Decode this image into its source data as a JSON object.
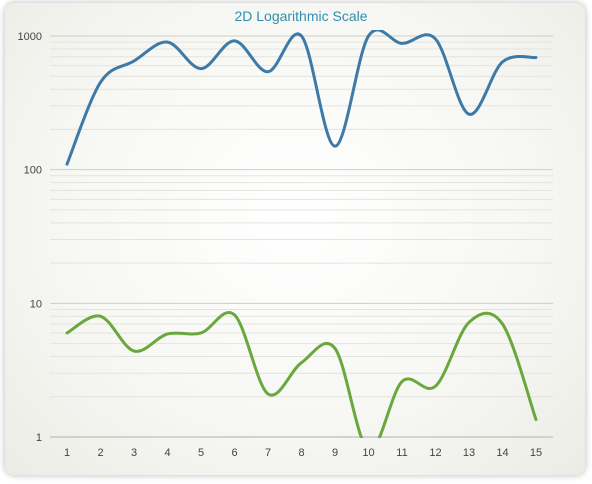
{
  "chart_data": {
    "type": "line",
    "title": "2D Logarithmic Scale",
    "xlabel": "",
    "ylabel": "",
    "y_scale": "log",
    "ylim": [
      1,
      1000
    ],
    "xlim": [
      1,
      15
    ],
    "x": [
      1,
      2,
      3,
      4,
      5,
      6,
      7,
      8,
      9,
      10,
      11,
      12,
      13,
      14,
      15
    ],
    "x_tick_labels": [
      "1",
      "2",
      "3",
      "4",
      "5",
      "6",
      "7",
      "8",
      "9",
      "10",
      "11",
      "12",
      "13",
      "14",
      "15"
    ],
    "y_tick_labels": [
      "1",
      "10",
      "100",
      "1000"
    ],
    "grid": "horizontal minor and major lines on log scale",
    "series": [
      {
        "color": "#3d7aa8",
        "values": [
          110,
          450,
          650,
          900,
          570,
          920,
          540,
          1000,
          150,
          1000,
          880,
          950,
          260,
          640,
          690
        ]
      },
      {
        "color": "#6aa83d",
        "values": [
          6.0,
          8.0,
          4.4,
          5.9,
          6.0,
          8.2,
          2.1,
          3.6,
          4.6,
          0.8,
          2.6,
          2.4,
          7.2,
          7.0,
          1.35
        ]
      }
    ]
  }
}
